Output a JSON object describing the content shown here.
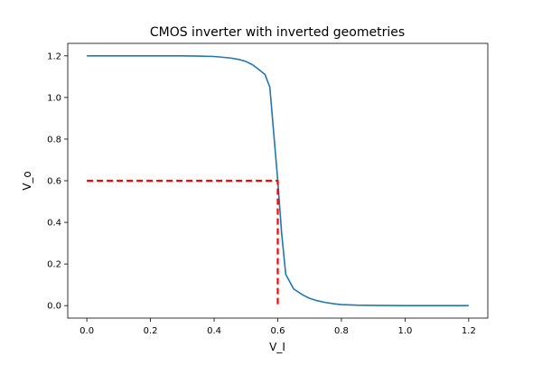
{
  "chart_data": {
    "type": "line",
    "title": "CMOS inverter with inverted geometries",
    "xlabel": "V_I",
    "ylabel": "V_o",
    "xlim": [
      -0.06,
      1.26
    ],
    "ylim": [
      -0.06,
      1.26
    ],
    "xticks": [
      "0.0",
      "0.2",
      "0.4",
      "0.6",
      "0.8",
      "1.0",
      "1.2"
    ],
    "yticks": [
      "0.0",
      "0.2",
      "0.4",
      "0.6",
      "0.8",
      "1.0",
      "1.2"
    ],
    "grid": false,
    "legend": "none",
    "series": [
      {
        "color": "#1f77b4",
        "style": "solid",
        "x": [
          0.0,
          0.1,
          0.2,
          0.3,
          0.35,
          0.4,
          0.45,
          0.48,
          0.5,
          0.52,
          0.54,
          0.56,
          0.575,
          0.6,
          0.612,
          0.625,
          0.65,
          0.68,
          0.7,
          0.72,
          0.75,
          0.78,
          0.8,
          0.85,
          0.9,
          1.0,
          1.2
        ],
        "y": [
          1.2,
          1.2,
          1.2,
          1.2,
          1.199,
          1.197,
          1.19,
          1.182,
          1.173,
          1.158,
          1.135,
          1.11,
          1.05,
          0.6,
          0.35,
          0.15,
          0.08,
          0.05,
          0.035,
          0.025,
          0.015,
          0.008,
          0.005,
          0.002,
          0.001,
          0.0,
          0.0
        ]
      },
      {
        "color": "#ff0000",
        "style": "dashed",
        "x": [
          0.0,
          0.6,
          0.6
        ],
        "y": [
          0.6,
          0.6,
          0.0
        ]
      }
    ]
  }
}
